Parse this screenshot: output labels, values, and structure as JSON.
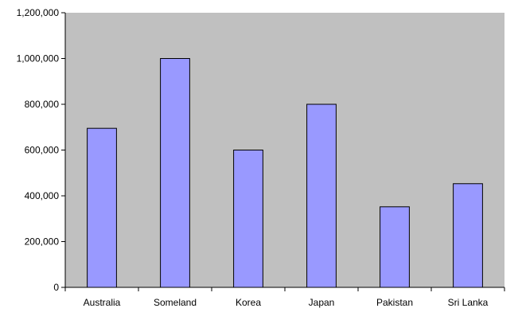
{
  "chart_data": {
    "type": "bar",
    "categories": [
      "Australia",
      "Someland",
      "Korea",
      "Japan",
      "Pakistan",
      "Sri Lanka"
    ],
    "values": [
      695000,
      1000000,
      600000,
      800000,
      352000,
      453000
    ],
    "ylim": [
      0,
      1200000
    ],
    "yticks": [
      0,
      200000,
      400000,
      600000,
      800000,
      1000000,
      1200000
    ],
    "ytick_labels": [
      "0",
      "200,000",
      "400,000",
      "600,000",
      "800,000",
      "1,000,000",
      "1,200,000"
    ],
    "title": "",
    "xlabel": "",
    "ylabel": "",
    "grid": false,
    "legend": "none",
    "colors": {
      "plot_background": "#c0c0c0",
      "bar_fill": "#9999ff",
      "bar_edge": "#000000",
      "axis": "#000000"
    }
  }
}
